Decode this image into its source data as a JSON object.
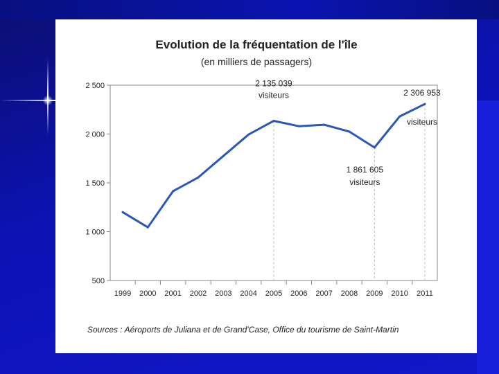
{
  "chart_data": {
    "type": "line",
    "title": "Evolution de la fréquentation de l'île",
    "subtitle": "(en milliers de passagers)",
    "categories": [
      "1999",
      "2000",
      "2001",
      "2002",
      "2003",
      "2004",
      "2005",
      "2006",
      "2007",
      "2008",
      "2009",
      "2010",
      "2011"
    ],
    "values": [
      1200,
      1045,
      1415,
      1555,
      1775,
      1995,
      2135,
      2080,
      2095,
      2025,
      1862,
      2180,
      2307
    ],
    "ylim": [
      500,
      2500
    ],
    "yticks": [
      {
        "value": 500,
        "label": "500"
      },
      {
        "value": 1000,
        "label": "1 000"
      },
      {
        "value": 1500,
        "label": "1 500"
      },
      {
        "value": 2000,
        "label": "2 000"
      },
      {
        "value": 2500,
        "label": "2 500"
      }
    ],
    "grid": false,
    "line_color": "#2b57b8",
    "annotations": [
      {
        "category": "2005",
        "value": 2135,
        "number": "2 135 039",
        "unit": "visiteurs"
      },
      {
        "category": "2009",
        "value": 1862,
        "number": "1 861 605",
        "unit": "visiteurs"
      },
      {
        "category": "2011",
        "value": 2307,
        "number": "2 306 953",
        "unit": "visiteurs"
      }
    ],
    "source": "Sources : Aéroports de Juliana et de Grand'Case, Office du tourisme de Saint-Martin"
  }
}
